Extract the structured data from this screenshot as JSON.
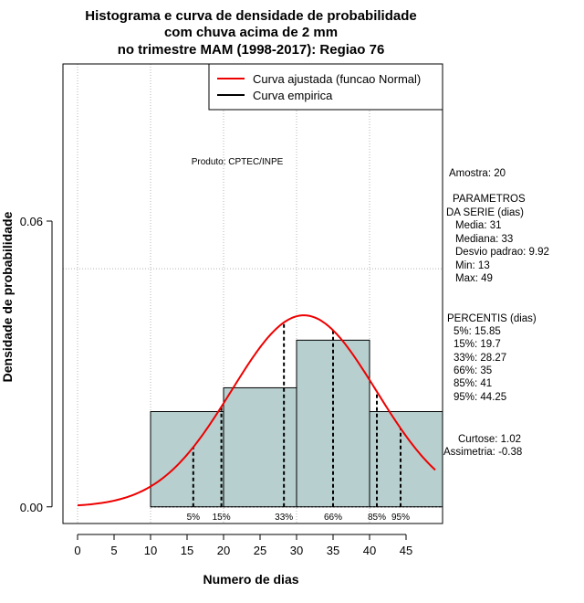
{
  "chart_data": {
    "type": "histogram",
    "title_lines": [
      "Histograma e curva de densidade de probabilidade",
      "com chuva acima de 2 mm",
      "no trimestre MAM (1998-2017): Regiao 76"
    ],
    "xlabel": "Numero de dias",
    "ylabel": "Densidade de probabilidade",
    "xlim": [
      -2,
      50
    ],
    "ylim": [
      -0.0035,
      0.093
    ],
    "x_ticks": [
      0,
      5,
      10,
      15,
      20,
      25,
      30,
      35,
      40,
      45
    ],
    "x_tick_labels": [
      "0",
      "5",
      "10",
      "15",
      "20",
      "25",
      "30",
      "35",
      "40",
      "45"
    ],
    "y_ticks": [
      0.0,
      0.06
    ],
    "y_tick_labels": [
      "0.00",
      "0.06"
    ],
    "grid_x": [
      0,
      10,
      20,
      30,
      40
    ],
    "grid_y": [
      0.05
    ],
    "bins": [
      {
        "start": 10,
        "end": 20,
        "density": 0.02
      },
      {
        "start": 20,
        "end": 30,
        "density": 0.025
      },
      {
        "start": 30,
        "end": 40,
        "density": 0.035
      },
      {
        "start": 40,
        "end": 50,
        "density": 0.02
      }
    ],
    "fitted_curve": {
      "name": "Curva ajustada (funcao Normal)",
      "mean": 31,
      "sd": 9.92,
      "x_range": [
        0,
        49
      ],
      "color": "#ee0000"
    },
    "empirical_curve": {
      "name": "Curva empirica",
      "color": "#000000"
    },
    "percentiles": [
      {
        "label": "5%",
        "value": 15.85
      },
      {
        "label": "15%",
        "value": 19.7
      },
      {
        "label": "33%",
        "value": 28.27
      },
      {
        "label": "66%",
        "value": 35
      },
      {
        "label": "85%",
        "value": 41
      },
      {
        "label": "95%",
        "value": 44.25
      }
    ],
    "legend_position": "top-right",
    "annotation": "Produto: CPTEC/INPE",
    "bar_color": "#b7cfcf",
    "side_info": {
      "amostra": "Amostra: 20",
      "param_title_1": "PARAMETROS",
      "param_title_2": "DA SERIE (dias)",
      "media": "Media: 31",
      "mediana": "Mediana: 33",
      "desvio": "Desvio padrao: 9.92",
      "min": "Min: 13",
      "max": "Max: 49",
      "percentis_title": "PERCENTIS (dias)",
      "p5": "5%: 15.85",
      "p15": "15%: 19.7",
      "p33": "33%: 28.27",
      "p66": "66%: 35",
      "p85": "85%: 41",
      "p95": "95%: 44.25",
      "curtose": "Curtose: 1.02",
      "assimetria": "Assimetria: -0.38"
    }
  }
}
